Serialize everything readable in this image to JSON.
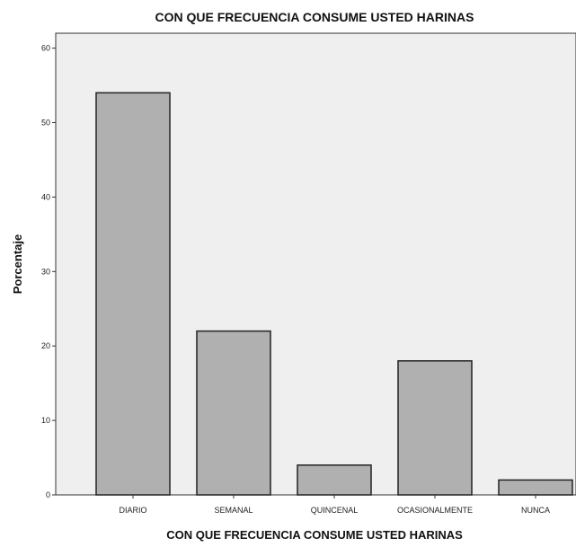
{
  "chart_data": {
    "type": "bar",
    "title": "CON QUE FRECUENCIA CONSUME USTED HARINAS",
    "xlabel": "CON QUE FRECUENCIA CONSUME USTED HARINAS",
    "ylabel": "Porcentaje",
    "categories": [
      "DIARIO",
      "SEMANAL",
      "QUINCENAL",
      "OCASIONALMENTE",
      "NUNCA"
    ],
    "values": [
      54,
      22,
      4,
      18,
      2
    ],
    "ylim": [
      0,
      62
    ],
    "yticks": [
      "0",
      "10",
      "20",
      "30",
      "40",
      "50",
      "60"
    ],
    "grid": false,
    "colors": {
      "plot_background": "#efefef",
      "bar_fill": "#b0b0b0",
      "bar_stroke": "#222222"
    }
  }
}
